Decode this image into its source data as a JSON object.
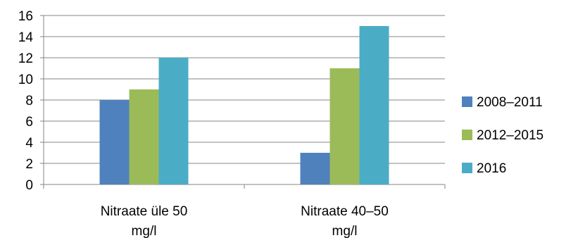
{
  "chart_data": {
    "type": "bar",
    "categories": [
      [
        "Nitraate üle 50",
        "mg/l"
      ],
      [
        "Nitraate 40–50",
        "mg/l"
      ]
    ],
    "series": [
      {
        "name": "2008–2011",
        "color": "#4F81BD",
        "values": [
          8,
          3
        ]
      },
      {
        "name": "2012–2015",
        "color": "#9BBB59",
        "values": [
          9,
          11
        ]
      },
      {
        "name": "2016",
        "color": "#4BACC6",
        "values": [
          12,
          15
        ]
      }
    ],
    "ylim": [
      0,
      16
    ],
    "yticks": [
      "0",
      "2",
      "4",
      "6",
      "8",
      "10",
      "12",
      "14",
      "16"
    ],
    "grid": true,
    "legend_position": "right",
    "title": "",
    "xlabel": "",
    "ylabel": ""
  }
}
